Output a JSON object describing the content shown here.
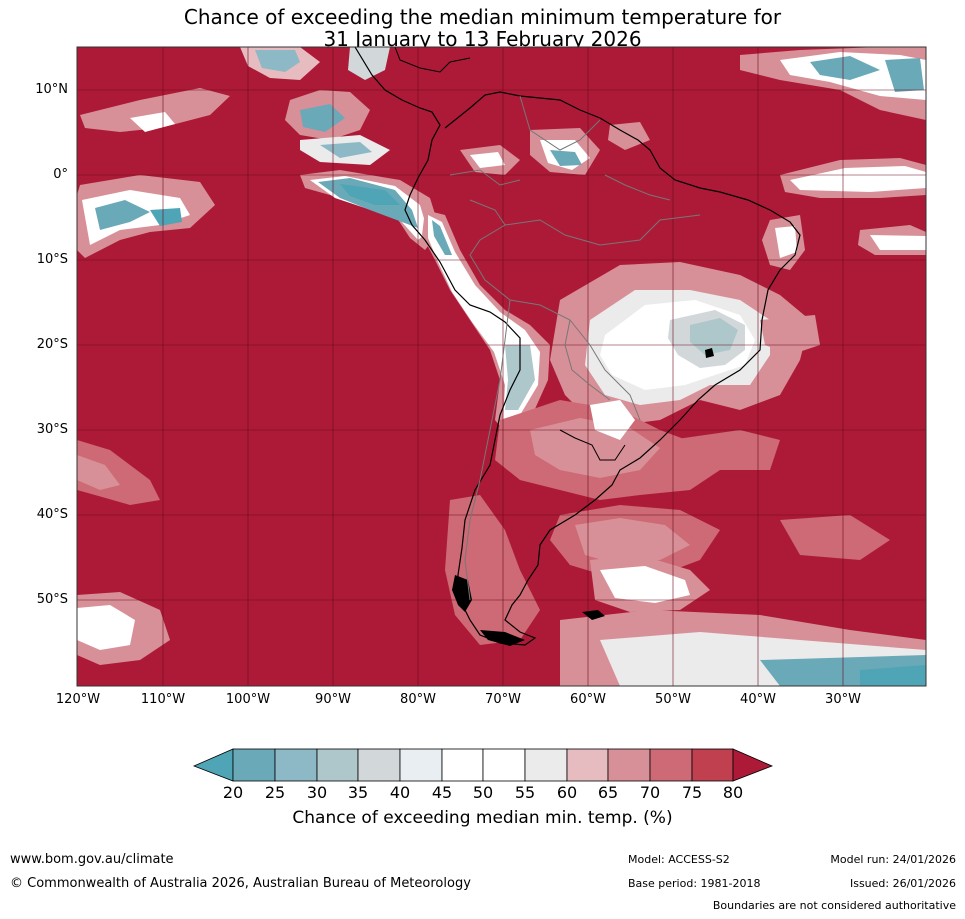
{
  "title": {
    "line1": "Chance of exceeding the median minimum temperature for",
    "line2": "31 January to 13 February 2026"
  },
  "map": {
    "lat_labels": [
      "10°N",
      "0°",
      "10°S",
      "20°S",
      "30°S",
      "40°S",
      "50°S"
    ],
    "lon_labels": [
      "120°W",
      "110°W",
      "100°W",
      "90°W",
      "80°W",
      "70°W",
      "60°W",
      "50°W",
      "40°W",
      "30°W"
    ],
    "colors": {
      "above_80": "#ad1a37",
      "c75_80": "#c0404f",
      "c70_75": "#cd6a75",
      "c65_70": "#d89098",
      "c60_65": "#e6bcc0",
      "c55_60": "#ebebeb",
      "c50_55": "#ffffff",
      "c40_45": "#e8eef1",
      "c35_40": "#d2d7da",
      "c30_35": "#aec7ca",
      "c25_30": "#8db8c6",
      "c20_25": "#6aa9b8",
      "below_20": "#4fa4b5",
      "coast": "#000000",
      "border": "#777777",
      "grid": "#6a0a1d"
    }
  },
  "colorbar": {
    "ticks": [
      "20",
      "25",
      "30",
      "35",
      "40",
      "45",
      "50",
      "55",
      "60",
      "65",
      "70",
      "75",
      "80"
    ],
    "label": "Chance of exceeding median min. temp. (%)"
  },
  "footer": {
    "url": "www.bom.gov.au/climate",
    "copyright": "© Commonwealth of Australia 2026, Australian Bureau of Meteorology",
    "model": "Model: ACCESS-S2",
    "base_period": "Base period: 1981-2018",
    "model_run": "Model run: 24/01/2026",
    "issued": "Issued: 26/01/2026",
    "disclaimer": "Boundaries are not considered authoritative"
  }
}
